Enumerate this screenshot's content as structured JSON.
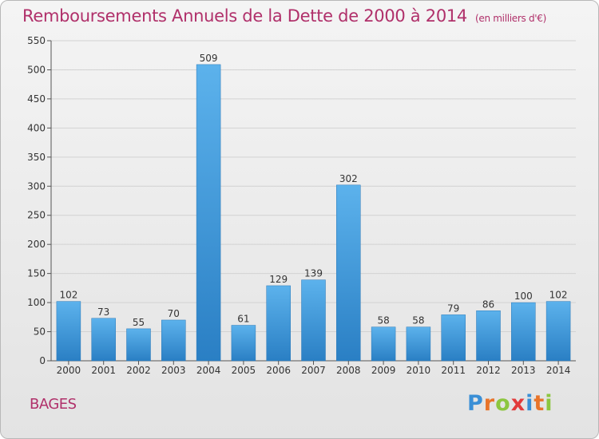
{
  "header": {
    "title": "Remboursements Annuels de la Dette de 2000 à 2014",
    "unit": "(en milliers d'€)"
  },
  "footer": {
    "commune": "BAGES",
    "logo_letters": [
      "P",
      "r",
      "o",
      "x",
      "i",
      "t",
      "i"
    ],
    "logo_colors": [
      "#3a8fd6",
      "#e8742a",
      "#8cc63f",
      "#e23b3b",
      "#3a8fd6",
      "#e8742a",
      "#8cc63f"
    ]
  },
  "chart_data": {
    "type": "bar",
    "title": "Remboursements Annuels de la Dette de 2000 à 2014",
    "categories": [
      "2000",
      "2001",
      "2002",
      "2003",
      "2004",
      "2005",
      "2006",
      "2007",
      "2008",
      "2009",
      "2010",
      "2011",
      "2012",
      "2013",
      "2014"
    ],
    "values": [
      102,
      73,
      55,
      70,
      509,
      61,
      129,
      139,
      302,
      58,
      58,
      79,
      86,
      100,
      102
    ],
    "ylim": [
      0,
      550
    ],
    "yticks": [
      0,
      50,
      100,
      150,
      200,
      250,
      300,
      350,
      400,
      450,
      500,
      550
    ],
    "grid": true,
    "bar_color": "#3d9ae0"
  }
}
